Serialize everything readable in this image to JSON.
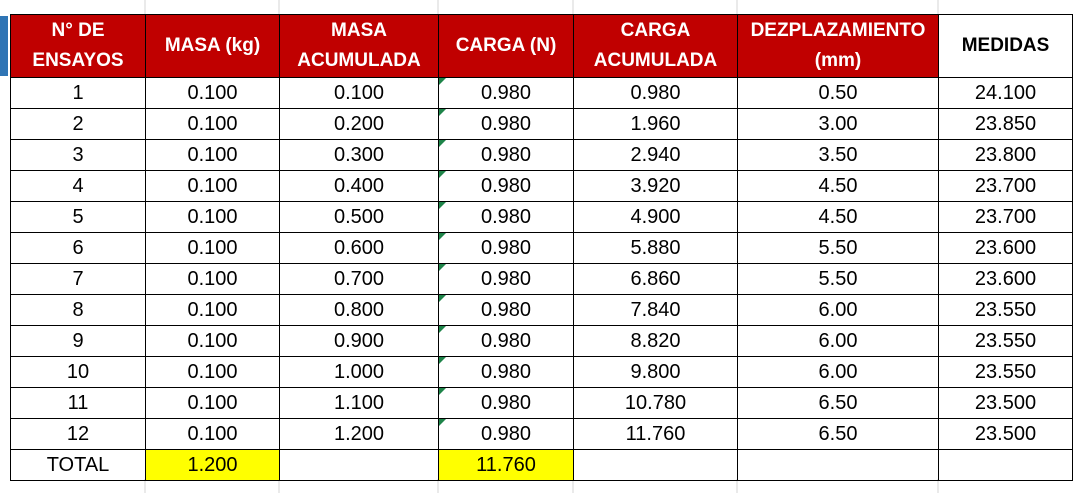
{
  "headers": {
    "ensayo": "N° DE ENSAYOS",
    "masa": "MASA (kg)",
    "masa_acum": "MASA ACUMULADA",
    "carga": "CARGA (N)",
    "carga_acum": "CARGA ACUMULADA",
    "desplazamiento": "DEZPLAZAMIENTO (mm)",
    "medidas": "MEDIDAS"
  },
  "rows": [
    {
      "n": "1",
      "masa": "0.100",
      "masa_acum": "0.100",
      "carga": "0.980",
      "carga_acum": "0.980",
      "desp": "0.50",
      "medida": "24.100"
    },
    {
      "n": "2",
      "masa": "0.100",
      "masa_acum": "0.200",
      "carga": "0.980",
      "carga_acum": "1.960",
      "desp": "3.00",
      "medida": "23.850"
    },
    {
      "n": "3",
      "masa": "0.100",
      "masa_acum": "0.300",
      "carga": "0.980",
      "carga_acum": "2.940",
      "desp": "3.50",
      "medida": "23.800"
    },
    {
      "n": "4",
      "masa": "0.100",
      "masa_acum": "0.400",
      "carga": "0.980",
      "carga_acum": "3.920",
      "desp": "4.50",
      "medida": "23.700"
    },
    {
      "n": "5",
      "masa": "0.100",
      "masa_acum": "0.500",
      "carga": "0.980",
      "carga_acum": "4.900",
      "desp": "4.50",
      "medida": "23.700"
    },
    {
      "n": "6",
      "masa": "0.100",
      "masa_acum": "0.600",
      "carga": "0.980",
      "carga_acum": "5.880",
      "desp": "5.50",
      "medida": "23.600"
    },
    {
      "n": "7",
      "masa": "0.100",
      "masa_acum": "0.700",
      "carga": "0.980",
      "carga_acum": "6.860",
      "desp": "5.50",
      "medida": "23.600"
    },
    {
      "n": "8",
      "masa": "0.100",
      "masa_acum": "0.800",
      "carga": "0.980",
      "carga_acum": "7.840",
      "desp": "6.00",
      "medida": "23.550"
    },
    {
      "n": "9",
      "masa": "0.100",
      "masa_acum": "0.900",
      "carga": "0.980",
      "carga_acum": "8.820",
      "desp": "6.00",
      "medida": "23.550"
    },
    {
      "n": "10",
      "masa": "0.100",
      "masa_acum": "1.000",
      "carga": "0.980",
      "carga_acum": "9.800",
      "desp": "6.00",
      "medida": "23.550"
    },
    {
      "n": "11",
      "masa": "0.100",
      "masa_acum": "1.100",
      "carga": "0.980",
      "carga_acum": "10.780",
      "desp": "6.50",
      "medida": "23.500"
    },
    {
      "n": "12",
      "masa": "0.100",
      "masa_acum": "1.200",
      "carga": "0.980",
      "carga_acum": "11.760",
      "desp": "6.50",
      "medida": "23.500"
    }
  ],
  "total": {
    "label": "TOTAL",
    "masa": "1.200",
    "carga": "11.760"
  },
  "colors": {
    "header_bg": "#c00000",
    "header_text": "#ffffff",
    "highlight": "#ffff00",
    "error_triangle": "#1e8449",
    "selection_marker": "#2f75b5"
  }
}
